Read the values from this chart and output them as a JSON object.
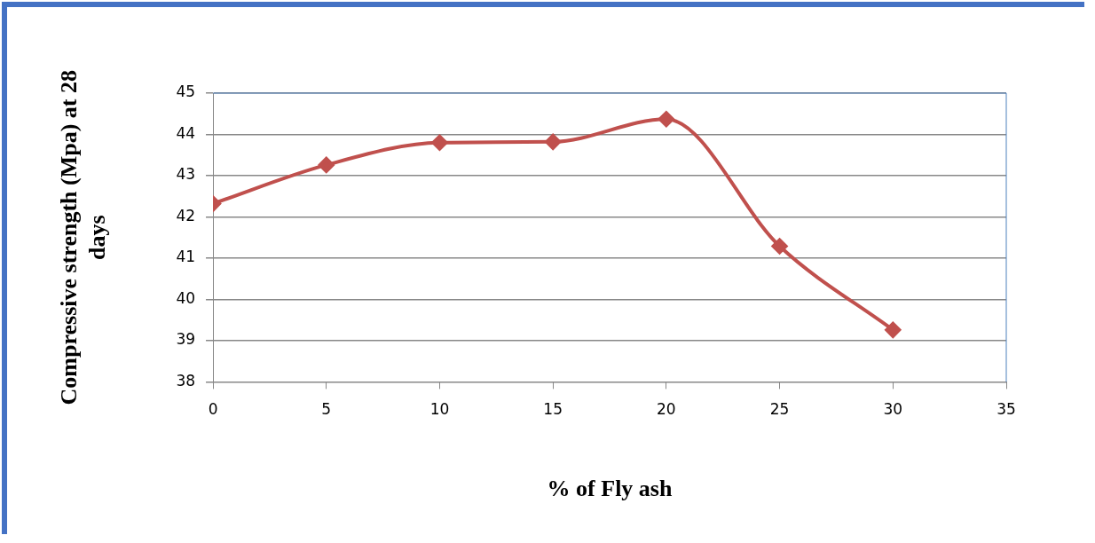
{
  "chart_data": {
    "type": "line",
    "xlabel": "% of Fly ash",
    "ylabel": "Compressive strength (Mpa) at 28 days",
    "x": [
      0,
      5,
      10,
      15,
      20,
      25,
      30
    ],
    "series": [
      {
        "color": "#c0504d",
        "values": [
          42.32,
          43.26,
          43.8,
          43.82,
          44.37,
          41.29,
          39.26
        ]
      }
    ],
    "xlim": [
      0,
      35
    ],
    "xticks": [
      0,
      5,
      10,
      15,
      20,
      25,
      30,
      35
    ],
    "ylim": [
      38,
      45
    ],
    "yticks": [
      38,
      39,
      40,
      41,
      42,
      43,
      44,
      45
    ],
    "grid": "y",
    "legend": false,
    "marker": "diamond",
    "line_style": "solid"
  }
}
